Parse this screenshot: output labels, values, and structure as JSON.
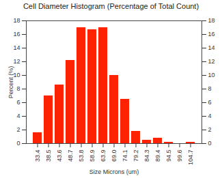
{
  "chart_data": {
    "type": "bar",
    "title": "Cell Diameter Histogram (Percentage of Total Count)",
    "x_label": "Size Microns (um)",
    "y_label": "Percent (%)",
    "categories": [
      "33.4",
      "38.5",
      "43.6",
      "48.7",
      "53.8",
      "58.9",
      "63.9",
      "69.0",
      "74.1",
      "79.2",
      "84.3",
      "89.4",
      "94.5",
      "99.6",
      "104.7"
    ],
    "values": [
      1.6,
      7.0,
      8.6,
      12.2,
      17.0,
      16.7,
      17.0,
      10.0,
      6.5,
      1.8,
      0.5,
      0.8,
      0.2,
      0,
      0.2
    ],
    "color": "#ff2200",
    "ylim": [
      0,
      18
    ],
    "yticks": [
      0,
      2,
      4,
      6,
      8,
      10,
      12,
      14,
      16,
      18
    ],
    "grid": false
  }
}
